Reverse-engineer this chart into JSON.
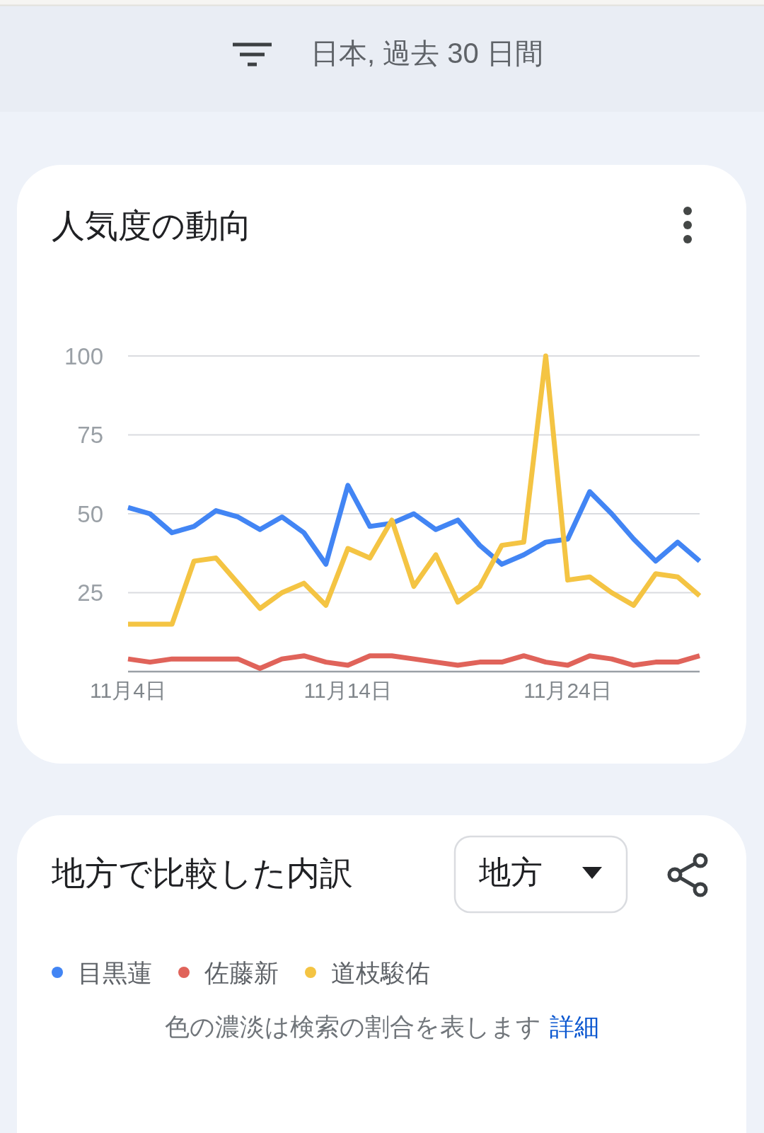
{
  "chart_data": {
    "type": "line",
    "title": "人気度の動向",
    "x": [
      "--11-04",
      "--11-05",
      "--11-06",
      "--11-07",
      "--11-08",
      "--11-09",
      "--11-10",
      "--11-11",
      "--11-12",
      "--11-13",
      "--11-14",
      "--11-15",
      "--11-16",
      "--11-17",
      "--11-18",
      "--11-19",
      "--11-20",
      "--11-21",
      "--11-22",
      "--11-23",
      "--11-24",
      "--11-25",
      "--11-26",
      "--11-27",
      "--11-28",
      "--11-29",
      "--11-30"
    ],
    "series": [
      {
        "name": "目黒蓮",
        "color": "#4285f4",
        "values": [
          52,
          50,
          44,
          46,
          51,
          49,
          45,
          49,
          44,
          34,
          59,
          46,
          47,
          50,
          45,
          48,
          40,
          34,
          37,
          41,
          42,
          57,
          50,
          42,
          35,
          41,
          35
        ]
      },
      {
        "name": "佐藤新",
        "color": "#e0635a",
        "values": [
          4,
          3,
          4,
          4,
          4,
          4,
          1,
          4,
          5,
          3,
          2,
          5,
          5,
          4,
          3,
          2,
          3,
          3,
          5,
          3,
          2,
          5,
          4,
          2,
          3,
          3,
          5
        ]
      },
      {
        "name": "道枝駿佑",
        "color": "#f4c443",
        "values": [
          15,
          15,
          15,
          35,
          36,
          28,
          20,
          25,
          28,
          21,
          39,
          36,
          48,
          27,
          37,
          22,
          27,
          40,
          41,
          100,
          29,
          30,
          25,
          21,
          31,
          30,
          24
        ]
      }
    ],
    "xlim": [
      "--11-04",
      "--11-30"
    ],
    "xticks": [
      {
        "value": "--11-04",
        "label": "11月4日"
      },
      {
        "value": "--11-14",
        "label": "11月14日"
      },
      {
        "value": "--11-24",
        "label": "11月24日"
      }
    ],
    "ylim": [
      0,
      100
    ],
    "yticks": [
      25,
      50,
      75,
      100
    ],
    "grid": "y",
    "legend": "bottom",
    "annotations": [
      "日本, 過去 30 日間",
      "地方で比較した内訳",
      "地方",
      "色の濃淡は検索の割合を表します",
      "詳細"
    ]
  }
}
